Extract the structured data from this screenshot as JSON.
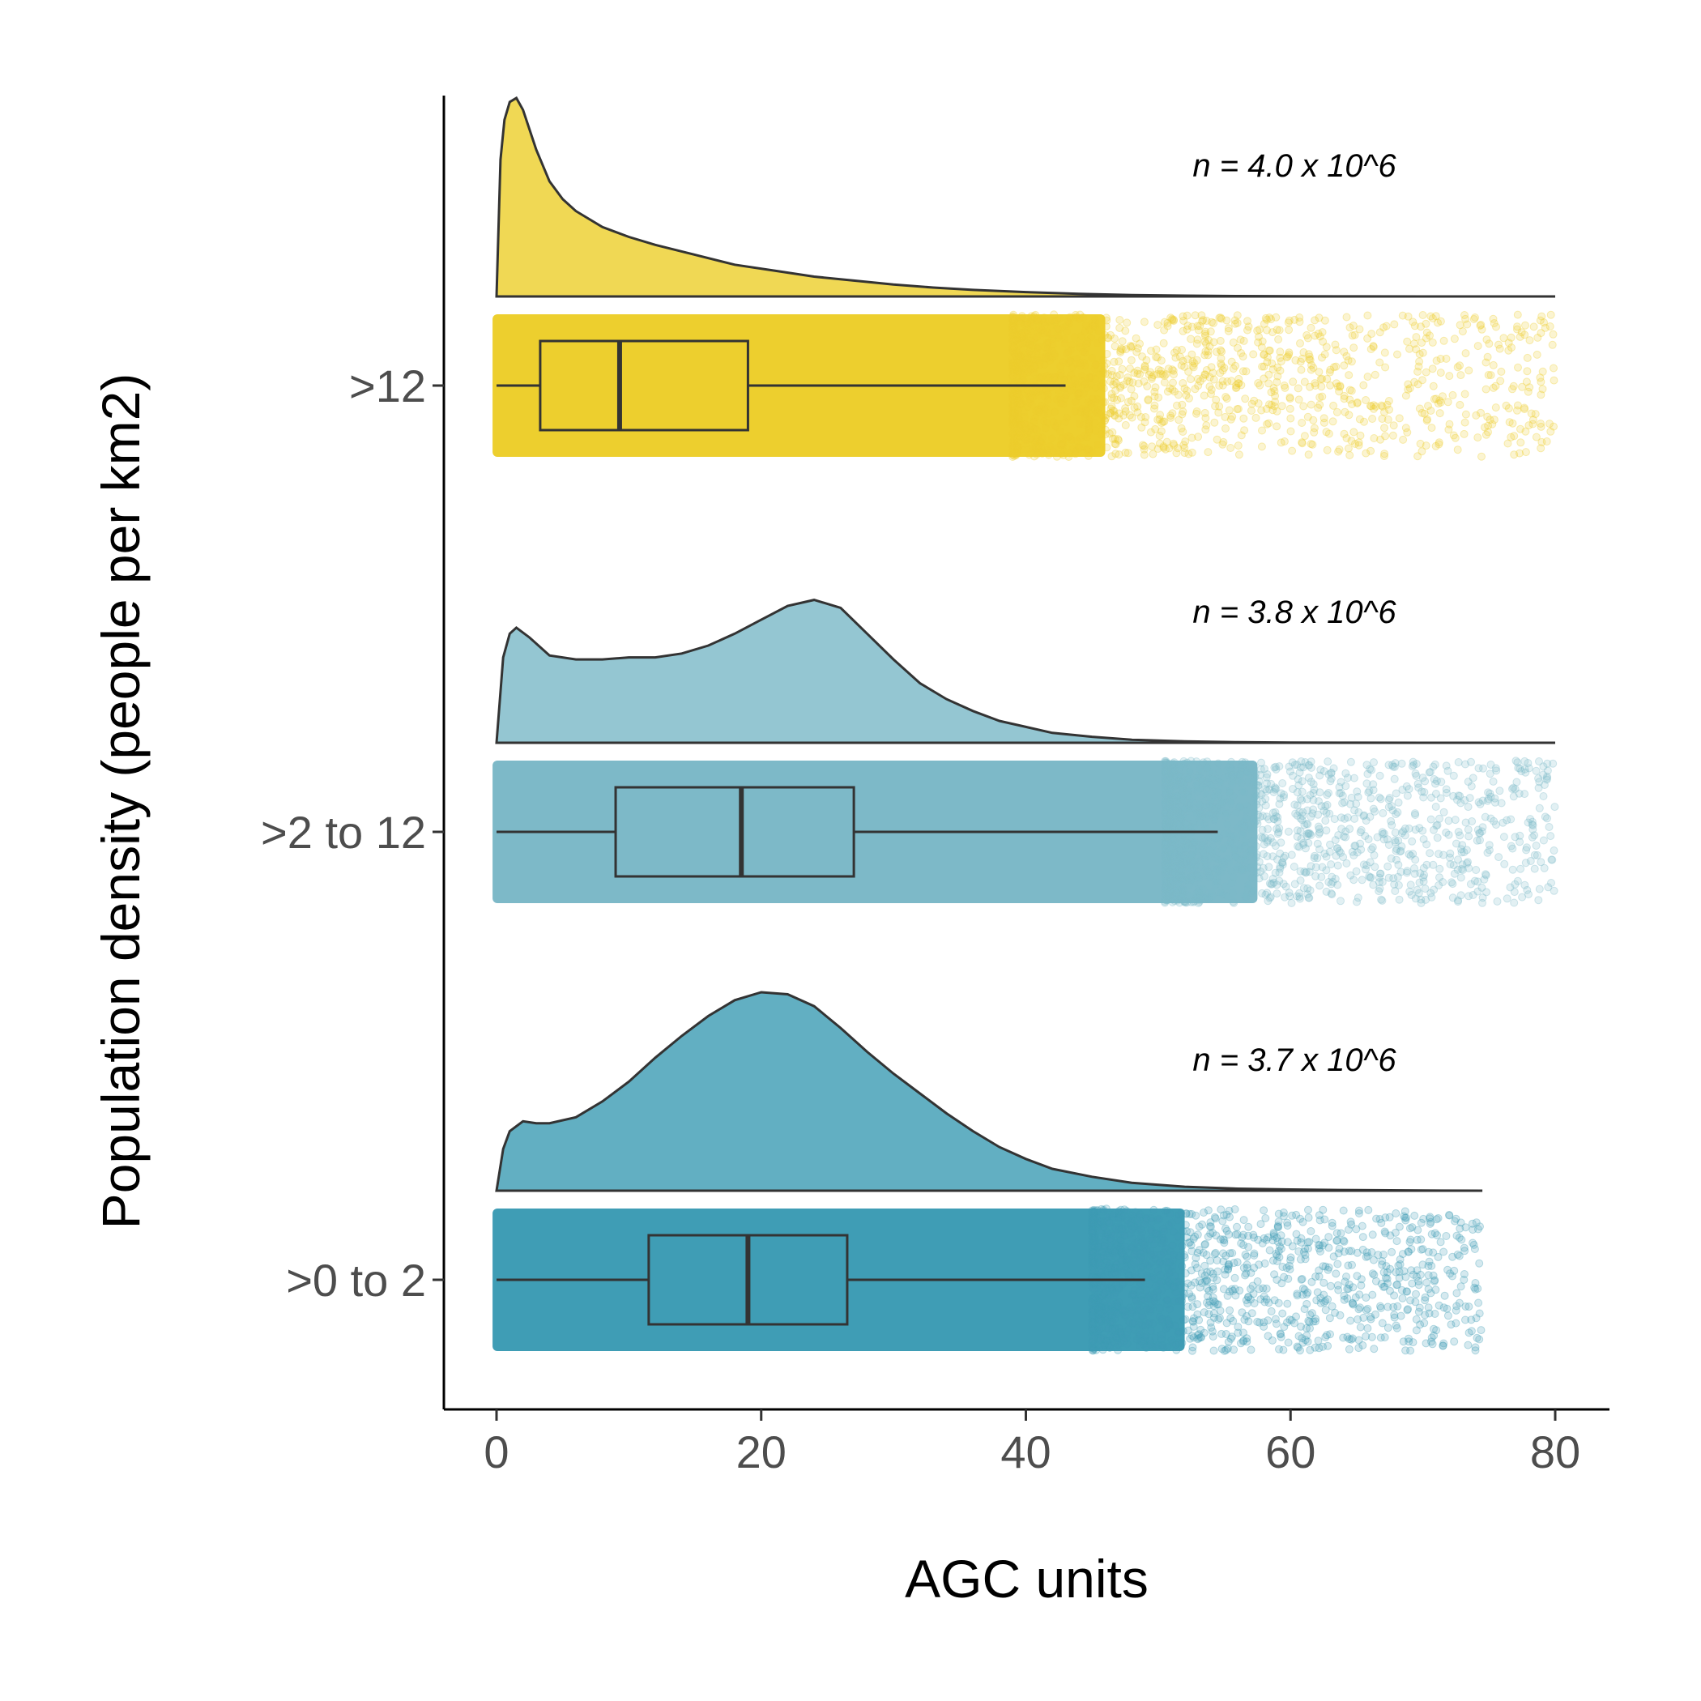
{
  "chart_data": {
    "type": "raincloud",
    "xlabel": "AGC units",
    "ylabel": "Population density (people per km2)",
    "xlim": [
      -2,
      84
    ],
    "xticks": [
      0,
      20,
      40,
      60,
      80
    ],
    "grid": false,
    "legend": "none",
    "groups": [
      {
        "label": ">0 to 2",
        "color": "#3F9DB5",
        "annotation": "n = 3.7 x 10^6",
        "box": {
          "min": 0,
          "q1": 11.5,
          "median": 19,
          "q3": 26.5,
          "max": 49
        },
        "points_max": 74.5,
        "density": {
          "x": [
            0,
            0.5,
            1,
            2,
            3,
            4,
            6,
            8,
            10,
            12,
            14,
            16,
            18,
            20,
            22,
            24,
            26,
            28,
            30,
            32,
            34,
            36,
            38,
            40,
            42,
            45,
            48,
            52,
            56,
            60,
            65,
            70,
            74.5
          ],
          "y": [
            0.0,
            0.21,
            0.3,
            0.35,
            0.34,
            0.34,
            0.37,
            0.45,
            0.55,
            0.67,
            0.78,
            0.88,
            0.96,
            1.0,
            0.99,
            0.93,
            0.82,
            0.7,
            0.59,
            0.49,
            0.39,
            0.3,
            0.22,
            0.16,
            0.11,
            0.07,
            0.04,
            0.02,
            0.01,
            0.006,
            0.003,
            0.001,
            0.0
          ]
        },
        "scatter_seed": 11
      },
      {
        "label": ">2 to 12",
        "color": "#7DB9C8",
        "annotation": "n = 3.8 x 10^6",
        "box": {
          "min": 0,
          "q1": 9,
          "median": 18.5,
          "q3": 27,
          "max": 54.5
        },
        "points_max": 80,
        "density": {
          "x": [
            0,
            0.5,
            1,
            1.5,
            2.5,
            4,
            6,
            8,
            10,
            12,
            14,
            16,
            18,
            20,
            22,
            24,
            26,
            28,
            30,
            32,
            34,
            36,
            38,
            40,
            42,
            45,
            48,
            52,
            56,
            60,
            65,
            70,
            75,
            80
          ],
          "y": [
            0.0,
            0.43,
            0.55,
            0.58,
            0.53,
            0.44,
            0.42,
            0.42,
            0.43,
            0.43,
            0.45,
            0.49,
            0.55,
            0.62,
            0.69,
            0.72,
            0.68,
            0.55,
            0.42,
            0.3,
            0.22,
            0.16,
            0.11,
            0.08,
            0.05,
            0.03,
            0.015,
            0.007,
            0.003,
            0.001,
            0.0005,
            0.0002,
            0.0001,
            0.0
          ]
        },
        "scatter_seed": 23
      },
      {
        "label": ">12",
        "color": "#EDCF2E",
        "annotation": "n = 4.0 x 10^6",
        "box": {
          "min": 0,
          "q1": 3.3,
          "median": 9.3,
          "q3": 19,
          "max": 43
        },
        "points_max": 80,
        "density": {
          "x": [
            0,
            0.3,
            0.6,
            1,
            1.5,
            2,
            3,
            4,
            5,
            6,
            8,
            10,
            12,
            15,
            18,
            21,
            24,
            27,
            30,
            33,
            36,
            40,
            44,
            48,
            52,
            56,
            60,
            65,
            70,
            75,
            80
          ],
          "y": [
            0.0,
            0.69,
            0.89,
            0.98,
            1.0,
            0.94,
            0.74,
            0.58,
            0.49,
            0.43,
            0.35,
            0.3,
            0.26,
            0.21,
            0.16,
            0.13,
            0.1,
            0.08,
            0.06,
            0.045,
            0.033,
            0.022,
            0.013,
            0.007,
            0.004,
            0.002,
            0.001,
            0.0005,
            0.0002,
            0.0001,
            0.0
          ]
        },
        "scatter_seed": 37
      }
    ]
  }
}
